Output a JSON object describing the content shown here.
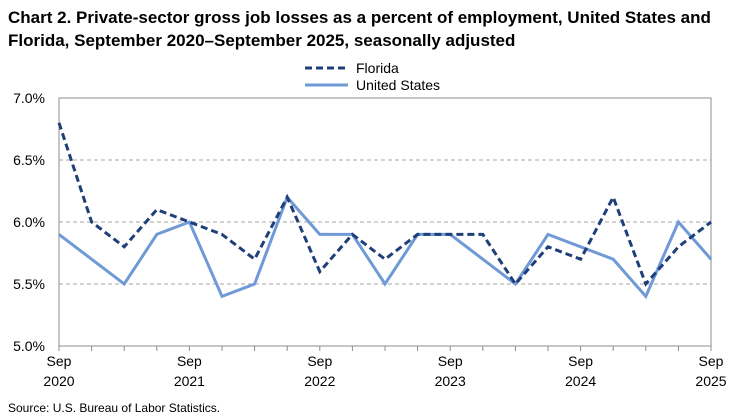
{
  "chart_data": {
    "type": "line",
    "title": "Chart 2. Private-sector gross job losses as a percent of employment, United States and Florida, September 2020–September 2025, seasonally adjusted",
    "source": "Source: U.S. Bureau of Labor Statistics.",
    "x": [
      "Sep 2020",
      "Dec 2020",
      "Mar 2021",
      "Jun 2021",
      "Sep 2021",
      "Dec 2021",
      "Mar 2022",
      "Jun 2022",
      "Sep 2022",
      "Dec 2022",
      "Mar 2023",
      "Jun 2023",
      "Sep 2023",
      "Dec 2023",
      "Mar 2024",
      "Jun 2024",
      "Sep 2024",
      "Dec 2024",
      "Mar 2025",
      "Jun 2025",
      "Sep 2025"
    ],
    "x_tick_labels": [
      {
        "index": 0,
        "month": "Sep",
        "year": "2020"
      },
      {
        "index": 4,
        "month": "Sep",
        "year": "2021"
      },
      {
        "index": 8,
        "month": "Sep",
        "year": "2022"
      },
      {
        "index": 12,
        "month": "Sep",
        "year": "2023"
      },
      {
        "index": 16,
        "month": "Sep",
        "year": "2024"
      },
      {
        "index": 20,
        "month": "Sep",
        "year": "2025"
      }
    ],
    "yticks": [
      {
        "value": 5.0,
        "label": "5.0%"
      },
      {
        "value": 5.5,
        "label": "5.5%"
      },
      {
        "value": 6.0,
        "label": "6.0%"
      },
      {
        "value": 6.5,
        "label": "6.5%"
      },
      {
        "value": 7.0,
        "label": "7.0%"
      }
    ],
    "ylim": [
      5.0,
      7.0
    ],
    "grid": "horizontal-dashed",
    "legend_position": "top-center",
    "series": [
      {
        "name": "Florida",
        "style": "dashed",
        "color": "#1f3f7a",
        "values": [
          6.8,
          6.0,
          5.8,
          6.1,
          6.0,
          5.9,
          5.7,
          6.2,
          5.6,
          5.9,
          5.7,
          5.9,
          5.9,
          5.9,
          5.5,
          5.8,
          5.7,
          6.2,
          5.5,
          5.8,
          6.0
        ]
      },
      {
        "name": "United States",
        "style": "solid",
        "color": "#6f9ad6",
        "values": [
          5.9,
          5.7,
          5.5,
          5.9,
          6.0,
          5.4,
          5.5,
          6.2,
          5.9,
          5.9,
          5.5,
          5.9,
          5.9,
          5.7,
          5.5,
          5.9,
          5.8,
          5.7,
          5.4,
          6.0,
          5.7
        ]
      }
    ]
  }
}
